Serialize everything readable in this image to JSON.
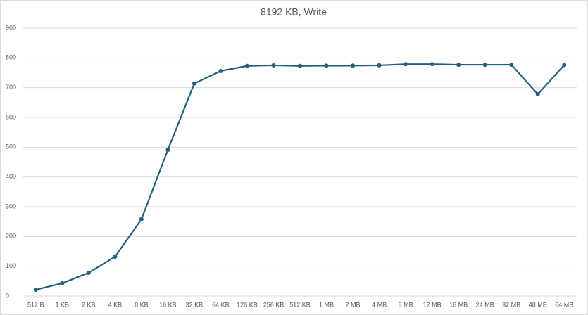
{
  "chart_data": {
    "type": "line",
    "title": "8192 KB, Write",
    "categories": [
      "512 B",
      "1 KB",
      "2 KB",
      "4 KB",
      "8 KB",
      "16 KB",
      "32 KB",
      "64 KB",
      "128 KB",
      "256 KB",
      "512 KB",
      "1 MB",
      "2 MB",
      "4 MB",
      "8 MB",
      "12 MB",
      "16 MB",
      "24 MB",
      "32 MB",
      "48 MB",
      "64 MB"
    ],
    "values": [
      21,
      43,
      78,
      132,
      258,
      491,
      714,
      756,
      773,
      775,
      773,
      774,
      774,
      775,
      779,
      779,
      777,
      777,
      777,
      678,
      776
    ],
    "color": "#23607f",
    "ylim": [
      0,
      900
    ],
    "yticks": [
      0,
      100,
      200,
      300,
      400,
      500,
      600,
      700,
      800,
      900
    ],
    "grid": true
  }
}
